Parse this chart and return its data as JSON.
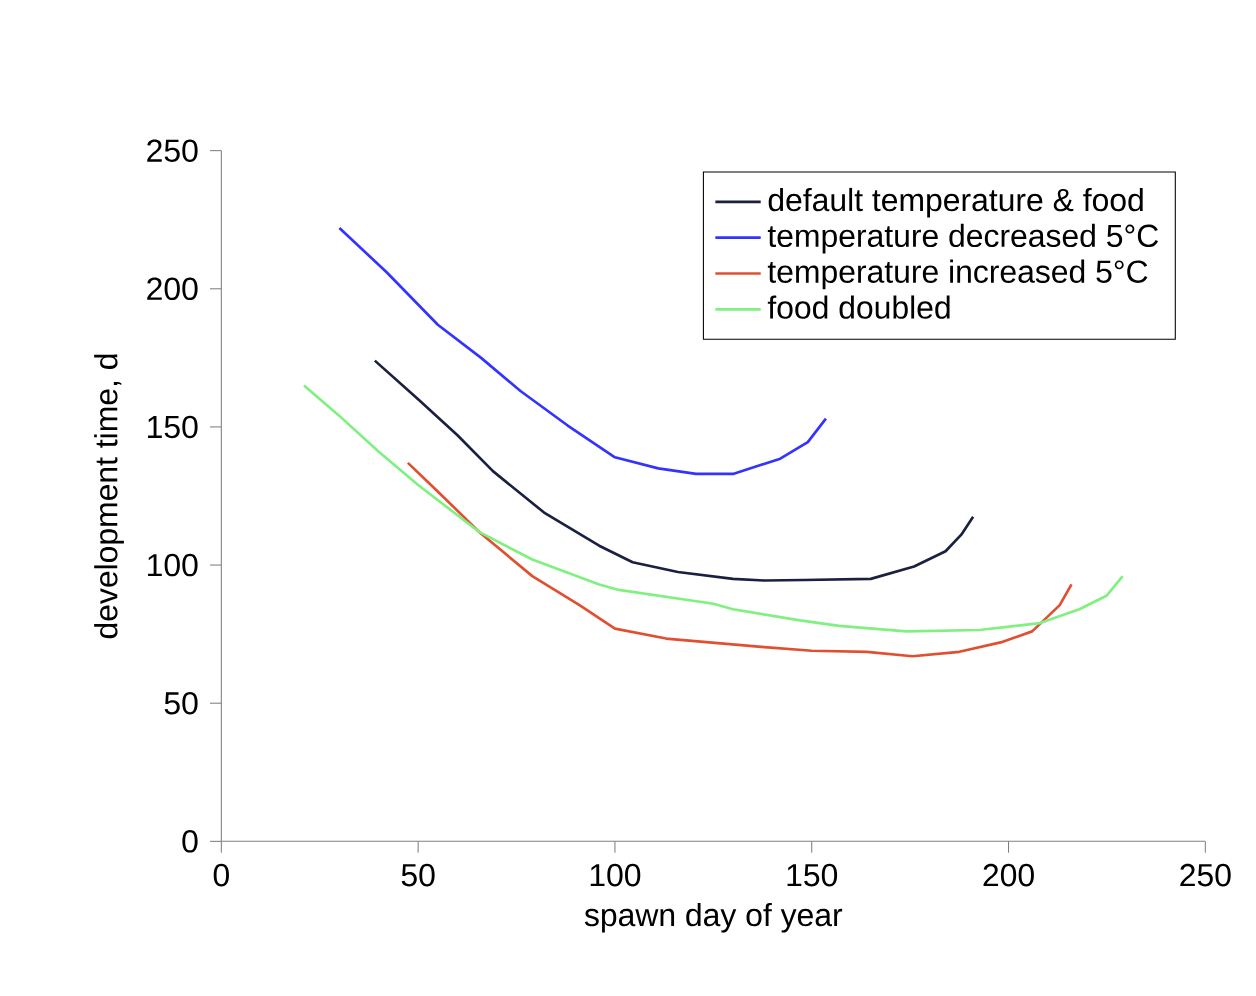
{
  "chart_data": {
    "type": "line",
    "xlabel": "spawn day of year",
    "ylabel": "development time, d",
    "xlim": [
      0,
      250
    ],
    "ylim": [
      0,
      250
    ],
    "xticks": [
      0,
      50,
      100,
      150,
      200,
      250
    ],
    "yticks": [
      0,
      50,
      100,
      150,
      200,
      250
    ],
    "grid": false,
    "legend": "top right",
    "marker": "none",
    "line_style": "solid",
    "series": [
      {
        "name": "default temperature & food",
        "color": "#1a2040",
        "x": [
          39,
          50,
          60,
          69,
          82,
          96,
          104.5,
          116,
          130,
          138,
          148,
          165,
          176,
          184,
          188,
          191
        ],
        "values": [
          174,
          160,
          147,
          134,
          119,
          107,
          101,
          97.5,
          95,
          94.4,
          94.6,
          95,
          99.5,
          105,
          111,
          117.5
        ]
      },
      {
        "name": "temperature decreased  5°C",
        "color": "#3333ff",
        "x": [
          30,
          42,
          55,
          66,
          76,
          88,
          100,
          111,
          120.6,
          130,
          142,
          149,
          153.6
        ],
        "values": [
          222,
          206,
          187,
          175,
          163,
          150.5,
          139,
          135,
          133,
          133,
          138.5,
          144.5,
          153
        ]
      },
      {
        "name": "temperature increased  5°C",
        "color": "#e05030",
        "x": [
          47.4,
          54,
          65.5,
          79,
          91,
          100,
          113,
          138,
          150,
          164,
          175.6,
          187.5,
          198,
          206,
          213,
          216
        ],
        "values": [
          137,
          128,
          112,
          96,
          85.5,
          77,
          73.4,
          70.3,
          69,
          68.6,
          67,
          68.6,
          72,
          76,
          85.5,
          93
        ]
      },
      {
        "name": "food doubled",
        "color": "#80f080",
        "x": [
          21,
          30,
          40,
          50,
          65.5,
          79,
          96,
          101,
          125,
          130,
          147,
          157,
          174,
          192.6,
          208,
          218,
          225,
          229
        ],
        "values": [
          165,
          154,
          141,
          129,
          112,
          102,
          93,
          91,
          86,
          84,
          80,
          78,
          76,
          76.5,
          79,
          84,
          89,
          96
        ]
      }
    ]
  }
}
